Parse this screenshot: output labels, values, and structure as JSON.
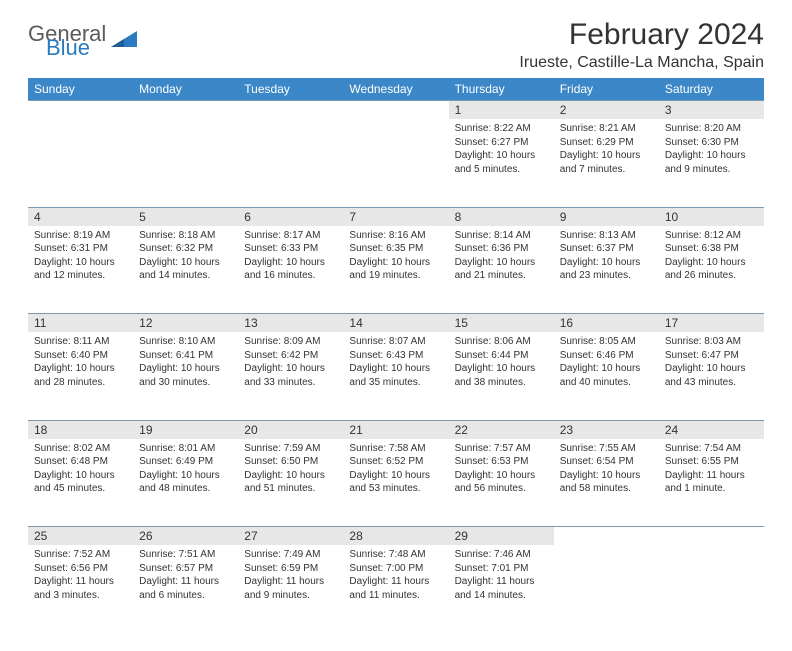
{
  "logo": {
    "word1": "General",
    "word2": "Blue"
  },
  "title": "February 2024",
  "location": "Irueste, Castille-La Mancha, Spain",
  "colors": {
    "header_bg": "#3b87c8",
    "header_text": "#ffffff",
    "daynum_bg": "#e7e7e7",
    "row_border": "#7a99b5",
    "body_text": "#333333",
    "logo_gray": "#5a5a5a",
    "logo_blue": "#2a7bbf"
  },
  "day_headers": [
    "Sunday",
    "Monday",
    "Tuesday",
    "Wednesday",
    "Thursday",
    "Friday",
    "Saturday"
  ],
  "weeks": [
    {
      "nums": [
        "",
        "",
        "",
        "",
        "1",
        "2",
        "3"
      ],
      "cells": [
        null,
        null,
        null,
        null,
        {
          "sr": "Sunrise: 8:22 AM",
          "ss": "Sunset: 6:27 PM",
          "dl": "Daylight: 10 hours and 5 minutes."
        },
        {
          "sr": "Sunrise: 8:21 AM",
          "ss": "Sunset: 6:29 PM",
          "dl": "Daylight: 10 hours and 7 minutes."
        },
        {
          "sr": "Sunrise: 8:20 AM",
          "ss": "Sunset: 6:30 PM",
          "dl": "Daylight: 10 hours and 9 minutes."
        }
      ]
    },
    {
      "nums": [
        "4",
        "5",
        "6",
        "7",
        "8",
        "9",
        "10"
      ],
      "cells": [
        {
          "sr": "Sunrise: 8:19 AM",
          "ss": "Sunset: 6:31 PM",
          "dl": "Daylight: 10 hours and 12 minutes."
        },
        {
          "sr": "Sunrise: 8:18 AM",
          "ss": "Sunset: 6:32 PM",
          "dl": "Daylight: 10 hours and 14 minutes."
        },
        {
          "sr": "Sunrise: 8:17 AM",
          "ss": "Sunset: 6:33 PM",
          "dl": "Daylight: 10 hours and 16 minutes."
        },
        {
          "sr": "Sunrise: 8:16 AM",
          "ss": "Sunset: 6:35 PM",
          "dl": "Daylight: 10 hours and 19 minutes."
        },
        {
          "sr": "Sunrise: 8:14 AM",
          "ss": "Sunset: 6:36 PM",
          "dl": "Daylight: 10 hours and 21 minutes."
        },
        {
          "sr": "Sunrise: 8:13 AM",
          "ss": "Sunset: 6:37 PM",
          "dl": "Daylight: 10 hours and 23 minutes."
        },
        {
          "sr": "Sunrise: 8:12 AM",
          "ss": "Sunset: 6:38 PM",
          "dl": "Daylight: 10 hours and 26 minutes."
        }
      ]
    },
    {
      "nums": [
        "11",
        "12",
        "13",
        "14",
        "15",
        "16",
        "17"
      ],
      "cells": [
        {
          "sr": "Sunrise: 8:11 AM",
          "ss": "Sunset: 6:40 PM",
          "dl": "Daylight: 10 hours and 28 minutes."
        },
        {
          "sr": "Sunrise: 8:10 AM",
          "ss": "Sunset: 6:41 PM",
          "dl": "Daylight: 10 hours and 30 minutes."
        },
        {
          "sr": "Sunrise: 8:09 AM",
          "ss": "Sunset: 6:42 PM",
          "dl": "Daylight: 10 hours and 33 minutes."
        },
        {
          "sr": "Sunrise: 8:07 AM",
          "ss": "Sunset: 6:43 PM",
          "dl": "Daylight: 10 hours and 35 minutes."
        },
        {
          "sr": "Sunrise: 8:06 AM",
          "ss": "Sunset: 6:44 PM",
          "dl": "Daylight: 10 hours and 38 minutes."
        },
        {
          "sr": "Sunrise: 8:05 AM",
          "ss": "Sunset: 6:46 PM",
          "dl": "Daylight: 10 hours and 40 minutes."
        },
        {
          "sr": "Sunrise: 8:03 AM",
          "ss": "Sunset: 6:47 PM",
          "dl": "Daylight: 10 hours and 43 minutes."
        }
      ]
    },
    {
      "nums": [
        "18",
        "19",
        "20",
        "21",
        "22",
        "23",
        "24"
      ],
      "cells": [
        {
          "sr": "Sunrise: 8:02 AM",
          "ss": "Sunset: 6:48 PM",
          "dl": "Daylight: 10 hours and 45 minutes."
        },
        {
          "sr": "Sunrise: 8:01 AM",
          "ss": "Sunset: 6:49 PM",
          "dl": "Daylight: 10 hours and 48 minutes."
        },
        {
          "sr": "Sunrise: 7:59 AM",
          "ss": "Sunset: 6:50 PM",
          "dl": "Daylight: 10 hours and 51 minutes."
        },
        {
          "sr": "Sunrise: 7:58 AM",
          "ss": "Sunset: 6:52 PM",
          "dl": "Daylight: 10 hours and 53 minutes."
        },
        {
          "sr": "Sunrise: 7:57 AM",
          "ss": "Sunset: 6:53 PM",
          "dl": "Daylight: 10 hours and 56 minutes."
        },
        {
          "sr": "Sunrise: 7:55 AM",
          "ss": "Sunset: 6:54 PM",
          "dl": "Daylight: 10 hours and 58 minutes."
        },
        {
          "sr": "Sunrise: 7:54 AM",
          "ss": "Sunset: 6:55 PM",
          "dl": "Daylight: 11 hours and 1 minute."
        }
      ]
    },
    {
      "nums": [
        "25",
        "26",
        "27",
        "28",
        "29",
        "",
        ""
      ],
      "cells": [
        {
          "sr": "Sunrise: 7:52 AM",
          "ss": "Sunset: 6:56 PM",
          "dl": "Daylight: 11 hours and 3 minutes."
        },
        {
          "sr": "Sunrise: 7:51 AM",
          "ss": "Sunset: 6:57 PM",
          "dl": "Daylight: 11 hours and 6 minutes."
        },
        {
          "sr": "Sunrise: 7:49 AM",
          "ss": "Sunset: 6:59 PM",
          "dl": "Daylight: 11 hours and 9 minutes."
        },
        {
          "sr": "Sunrise: 7:48 AM",
          "ss": "Sunset: 7:00 PM",
          "dl": "Daylight: 11 hours and 11 minutes."
        },
        {
          "sr": "Sunrise: 7:46 AM",
          "ss": "Sunset: 7:01 PM",
          "dl": "Daylight: 11 hours and 14 minutes."
        },
        null,
        null
      ]
    }
  ]
}
